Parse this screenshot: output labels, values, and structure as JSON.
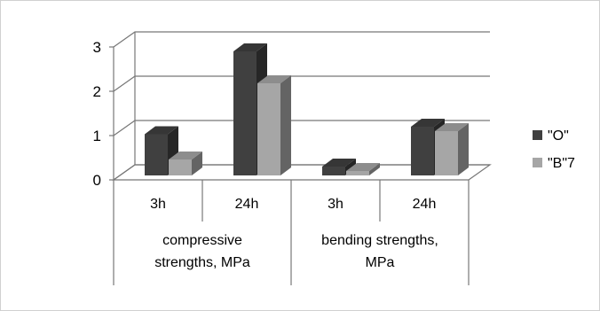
{
  "chart_data": {
    "type": "bar",
    "title": "",
    "xlabel": "",
    "ylabel": "",
    "ylim": [
      0,
      3
    ],
    "yticks": [
      "0",
      "1",
      "2",
      "3"
    ],
    "groups": [
      {
        "label": "compressive strengths, MPa",
        "categories": [
          "3h",
          "24h"
        ]
      },
      {
        "label": "bending strengths, MPa",
        "categories": [
          "3h",
          "24h"
        ]
      }
    ],
    "categories": [
      "3h",
      "24h",
      "3h",
      "24h"
    ],
    "series": [
      {
        "name": "\"O\"",
        "color": "#404040",
        "values": [
          0.93,
          2.8,
          0.2,
          1.1
        ]
      },
      {
        "name": "\"B\"7",
        "color": "#a6a6a6",
        "values": [
          0.36,
          2.08,
          0.1,
          1.0
        ]
      }
    ],
    "grid": true,
    "three_d": true,
    "legend_position": "right"
  }
}
